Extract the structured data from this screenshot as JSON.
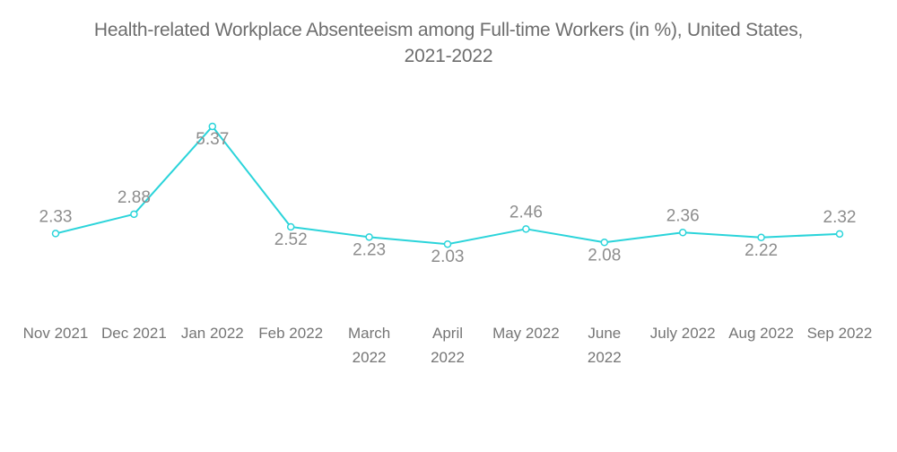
{
  "title_lines": [
    "Health-related Workplace Absenteeism among Full-time Workers (in %), United States,",
    "2021-2022"
  ],
  "colors": {
    "line": "#2bd4da",
    "marker_fill": "#ffffff",
    "value_label": "#8d8d8d",
    "tick_label": "#757575",
    "title": "#6d6d6d",
    "background": "#ffffff"
  },
  "chart_data": {
    "type": "line",
    "title": "Health-related Workplace Absenteeism among Full-time Workers (in %), United States, 2021-2022",
    "xlabel": "",
    "ylabel": "",
    "categories": [
      "Nov 2021",
      "Dec 2021",
      "Jan 2022",
      "Feb 2022",
      "March 2022",
      "April 2022",
      "May 2022",
      "June 2022",
      "July 2022",
      "Aug 2022",
      "Sep 2022"
    ],
    "values": [
      2.33,
      2.88,
      5.37,
      2.52,
      2.23,
      2.03,
      2.46,
      2.08,
      2.36,
      2.22,
      2.32
    ],
    "value_labels": [
      "2.33",
      "2.88",
      "5.37",
      "2.52",
      "2.23",
      "2.03",
      "2.46",
      "2.08",
      "2.36",
      "2.22",
      "2.32"
    ],
    "label_positions": [
      "above",
      "above",
      "below",
      "below",
      "below",
      "below",
      "above",
      "below",
      "above",
      "below",
      "above"
    ],
    "wrapped_tick_indices": [
      4,
      5,
      7
    ],
    "ylim": [
      0,
      6
    ],
    "grid": false,
    "legend": false,
    "axes_visible": false,
    "marker": "open-circle",
    "line_color": "#2bd4da"
  }
}
